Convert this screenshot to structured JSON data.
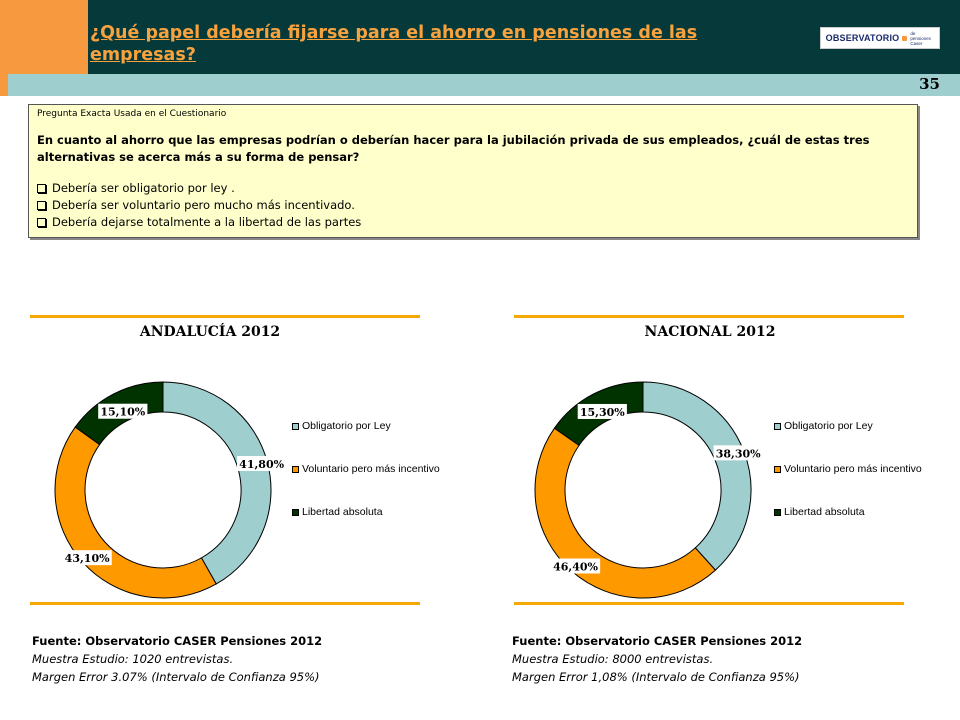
{
  "header": {
    "title": "¿Qué papel debería fijarse para el ahorro en pensiones de las empresas?",
    "logo_text": "OBSERVATORIO",
    "logo_sub": "de pensiones Caser",
    "page_number": "35"
  },
  "question": {
    "label": "Pregunta Exacta Usada en el Cuestionario",
    "text": "En cuanto al ahorro que las empresas podrían o deberían hacer para la jubilación privada de sus empleados, ¿cuál de estas tres alternativas se acerca más a su forma de pensar?",
    "options": [
      "Debería ser obligatorio por ley .",
      "Debería ser voluntario pero mucho más incentivado.",
      "Debería dejarse totalmente  a la libertad de las partes"
    ]
  },
  "colors": {
    "obligatorio": "#9ecece",
    "voluntario": "#ff9900",
    "libertad": "#003300",
    "header": "#063a3a",
    "accent": "#f7993f"
  },
  "chart_data": [
    {
      "type": "pie",
      "title": "ANDALUCÍA 2012",
      "categories": [
        "Obligatorio por Ley",
        "Voluntario pero más incentivo",
        "Libertad absoluta"
      ],
      "values": [
        41.8,
        43.1,
        15.1
      ],
      "labels": [
        "41,80%",
        "43,10%",
        "15,10%"
      ],
      "legend": "right"
    },
    {
      "type": "pie",
      "title": "NACIONAL 2012",
      "categories": [
        "Obligatorio por Ley",
        "Voluntario pero más incentivo",
        "Libertad absoluta"
      ],
      "values": [
        38.3,
        46.4,
        15.3
      ],
      "labels": [
        "38,30%",
        "46,40%",
        "15,30%"
      ],
      "legend": "right"
    }
  ],
  "sources": [
    {
      "title": "Fuente: Observatorio CASER Pensiones 2012",
      "sample": "Muestra Estudio: 1020 entrevistas.",
      "margin": "Margen Error 3.07% (Intervalo de Confianza 95%)"
    },
    {
      "title": "Fuente: Observatorio CASER Pensiones 2012",
      "sample": "Muestra Estudio: 8000 entrevistas.",
      "margin": "Margen Error 1,08% (Intervalo de Confianza 95%)"
    }
  ]
}
